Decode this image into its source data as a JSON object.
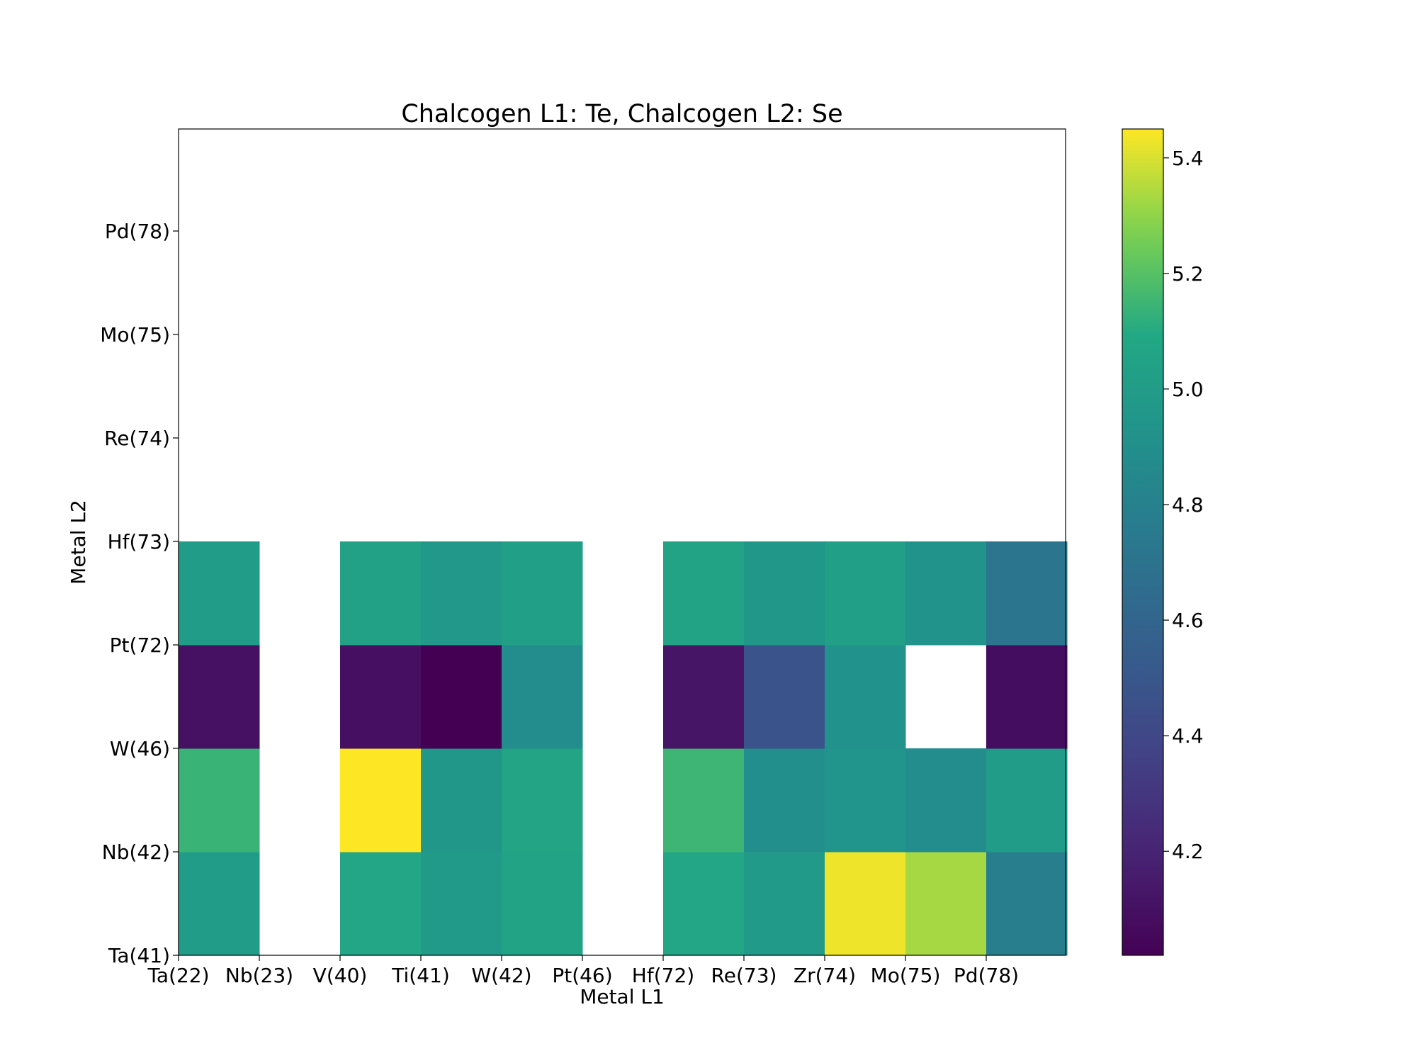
{
  "chart_data": {
    "type": "heatmap",
    "title": "Chalcogen L1: Te, Chalcogen L2: Se",
    "xlabel": "Metal L1",
    "ylabel": "Metal L2",
    "x_tick_labels": [
      "Ta(22)",
      "Nb(23)",
      "V(40)",
      "Ti(41)",
      "W(42)",
      "Pt(46)",
      "Hf(72)",
      "Re(73)",
      "Zr(74)",
      "Mo(75)",
      "Pd(78)"
    ],
    "y_tick_labels": [
      "Ta(41)",
      "Nb(42)",
      "W(46)",
      "Pt(72)",
      "Hf(73)",
      "Re(74)",
      "Mo(75)",
      "Pd(78)"
    ],
    "rows_bottom_to_top": [
      [
        5.0,
        null,
        5.08,
        4.98,
        5.05,
        null,
        5.08,
        4.98,
        5.43,
        5.33,
        4.78
      ],
      [
        5.14,
        null,
        5.45,
        4.96,
        5.06,
        null,
        5.15,
        4.9,
        4.94,
        4.88,
        5.0
      ],
      [
        4.1,
        null,
        4.09,
        4.02,
        4.88,
        null,
        4.12,
        4.48,
        4.92,
        null,
        4.08
      ],
      [
        5.0,
        null,
        5.04,
        4.97,
        5.02,
        null,
        5.05,
        4.96,
        5.02,
        4.93,
        4.72
      ],
      [
        null,
        null,
        null,
        null,
        null,
        null,
        null,
        null,
        null,
        null,
        null
      ],
      [
        null,
        null,
        null,
        null,
        null,
        null,
        null,
        null,
        null,
        null,
        null
      ],
      [
        null,
        null,
        null,
        null,
        null,
        null,
        null,
        null,
        null,
        null,
        null
      ],
      [
        null,
        null,
        null,
        null,
        null,
        null,
        null,
        null,
        null,
        null,
        null
      ]
    ],
    "colormap": "viridis",
    "colorbar_range": [
      4.02,
      5.45
    ],
    "colorbar_ticks": [
      "4.2",
      "4.4",
      "4.6",
      "4.8",
      "5.0",
      "5.2",
      "5.4"
    ],
    "grid": false
  }
}
